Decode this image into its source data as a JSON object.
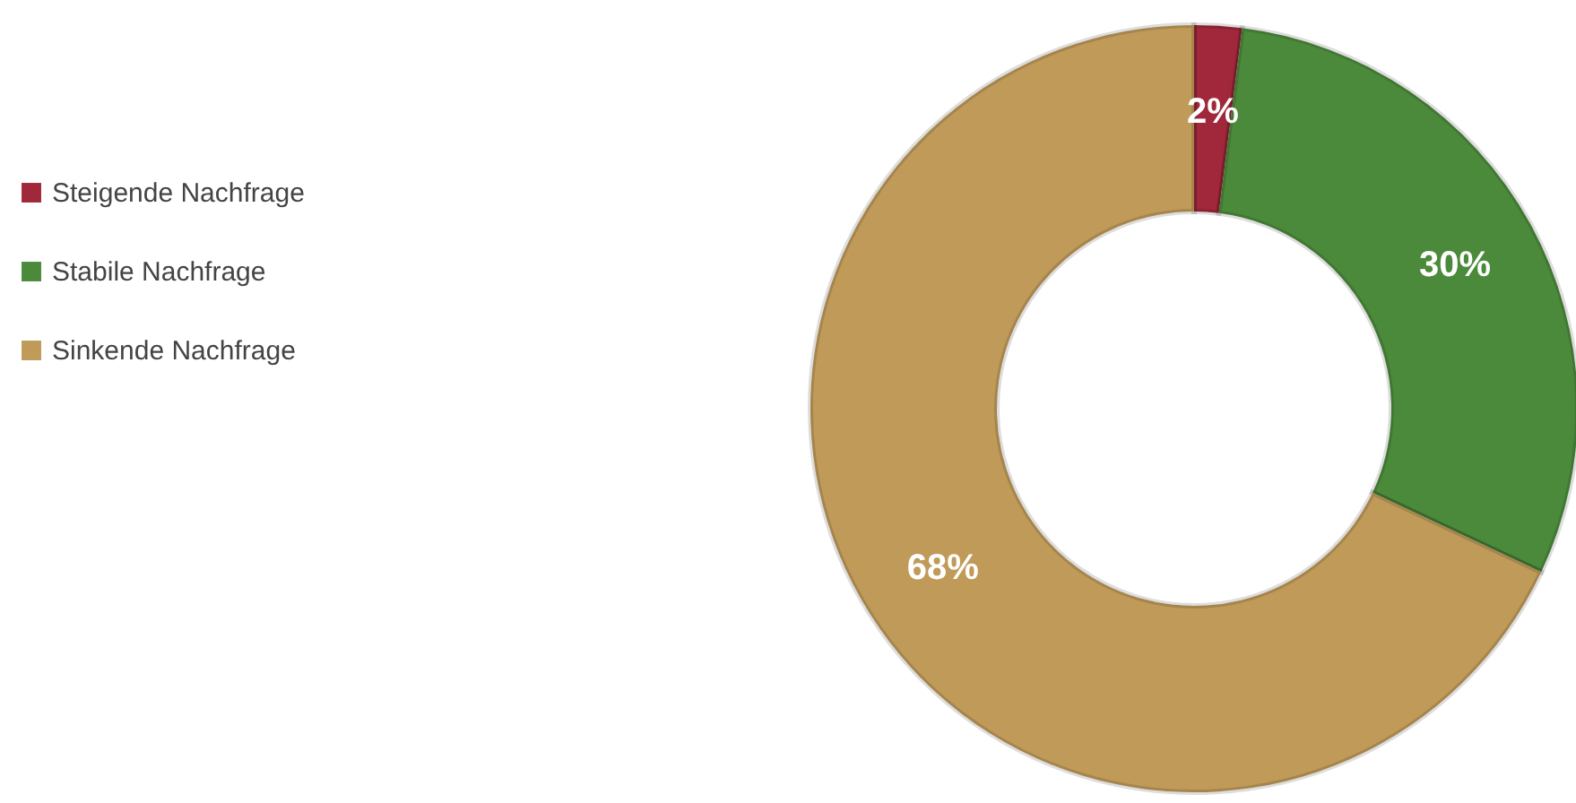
{
  "chart_data": {
    "type": "donut",
    "categories": [
      "Steigende Nachfrage",
      "Stabile Nachfrage",
      "Sinkende Nachfrage"
    ],
    "values": [
      2,
      30,
      68
    ],
    "colors": [
      "#a0283a",
      "#4b8a3b",
      "#c09a58"
    ],
    "value_labels": [
      "2%",
      "30%",
      "68%"
    ],
    "legend": "left"
  }
}
